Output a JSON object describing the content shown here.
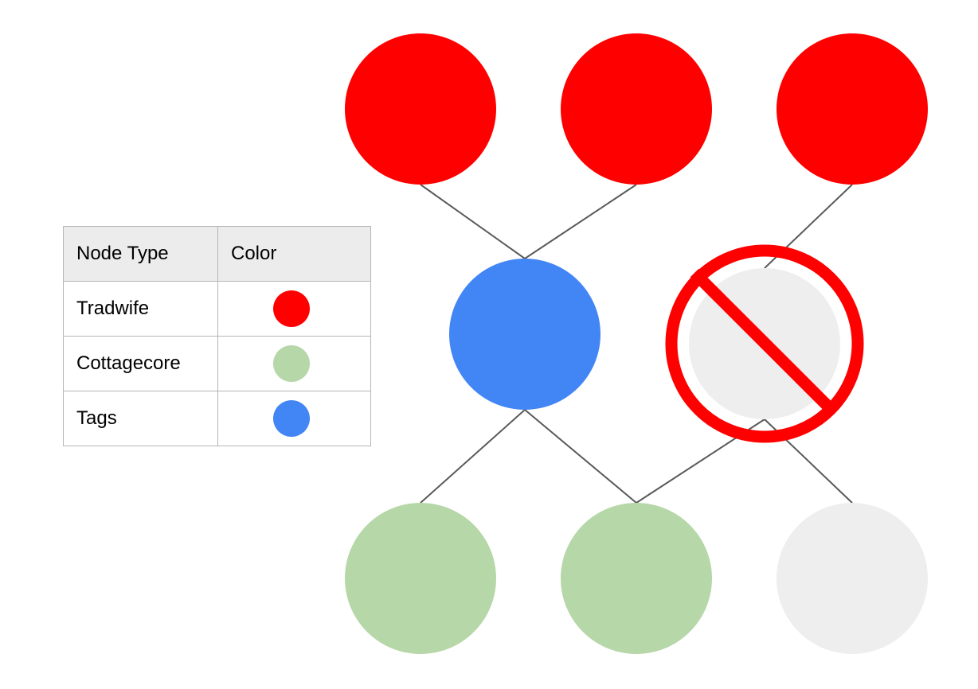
{
  "legend": {
    "headers": {
      "type": "Node Type",
      "color": "Color"
    },
    "rows": [
      {
        "label": "Tradwife",
        "color": "#ff0000"
      },
      {
        "label": "Cottagecore",
        "color": "#b6d7a8"
      },
      {
        "label": "Tags",
        "color": "#4285f4"
      }
    ]
  },
  "colors": {
    "tradwife": "#ff0000",
    "tag": "#4285f4",
    "cottagecore": "#b6d7a8",
    "inactive": "#eeeeee",
    "edge": "#595959",
    "prohibition": "#ff0000"
  },
  "nodes": [
    {
      "id": "tradwife-1",
      "kind": "tradwife",
      "status": "active"
    },
    {
      "id": "tradwife-2",
      "kind": "tradwife",
      "status": "active"
    },
    {
      "id": "tradwife-3",
      "kind": "tradwife",
      "status": "active"
    },
    {
      "id": "tag-1",
      "kind": "tag",
      "status": "active"
    },
    {
      "id": "tag-2",
      "kind": "tag",
      "status": "blocked"
    },
    {
      "id": "cottagecore-1",
      "kind": "cottagecore",
      "status": "active"
    },
    {
      "id": "cottagecore-2",
      "kind": "cottagecore",
      "status": "active"
    },
    {
      "id": "cottagecore-3",
      "kind": "cottagecore",
      "status": "inactive"
    }
  ],
  "edges": [
    [
      "tradwife-1",
      "tag-1"
    ],
    [
      "tradwife-2",
      "tag-1"
    ],
    [
      "tradwife-3",
      "tag-2"
    ],
    [
      "tag-1",
      "cottagecore-1"
    ],
    [
      "tag-1",
      "cottagecore-2"
    ],
    [
      "tag-2",
      "cottagecore-2"
    ],
    [
      "tag-2",
      "cottagecore-3"
    ]
  ]
}
